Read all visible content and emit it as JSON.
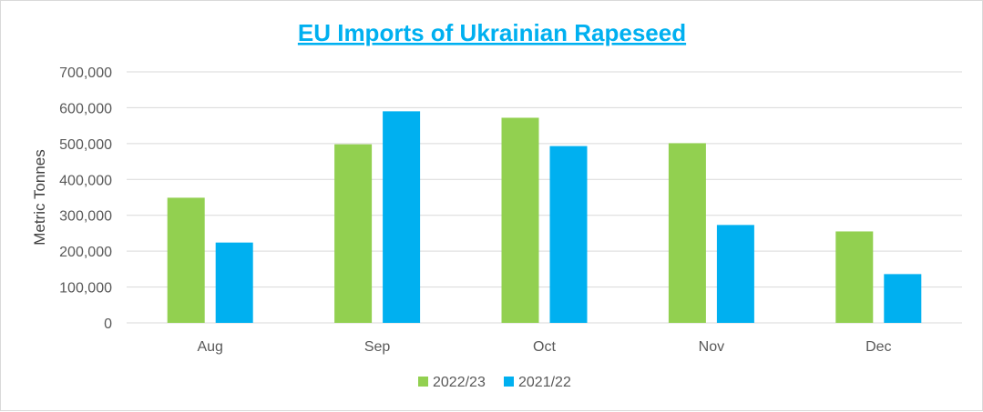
{
  "chart_data": {
    "type": "bar",
    "title": "EU Imports of Ukrainian Rapeseed",
    "xlabel": "",
    "ylabel": "Metric Tonnes",
    "categories": [
      "Aug",
      "Sep",
      "Oct",
      "Nov",
      "Dec"
    ],
    "series": [
      {
        "name": "2022/23",
        "values": [
          349000,
          498000,
          572000,
          501000,
          255000
        ]
      },
      {
        "name": "2021/22",
        "values": [
          224000,
          590000,
          493000,
          273000,
          136000
        ]
      }
    ],
    "ylim": [
      0,
      700000
    ],
    "yticks": [
      0,
      100000,
      200000,
      300000,
      400000,
      500000,
      600000,
      700000
    ],
    "ytick_labels": [
      "0",
      "100,000",
      "200,000",
      "300,000",
      "400,000",
      "500,000",
      "600,000",
      "700,000"
    ],
    "grid": true,
    "legend_position": "bottom"
  },
  "colors": {
    "title": "#00b0f0",
    "series": [
      "#92d050",
      "#00b0f0"
    ],
    "grid": "#d9d9d9"
  }
}
